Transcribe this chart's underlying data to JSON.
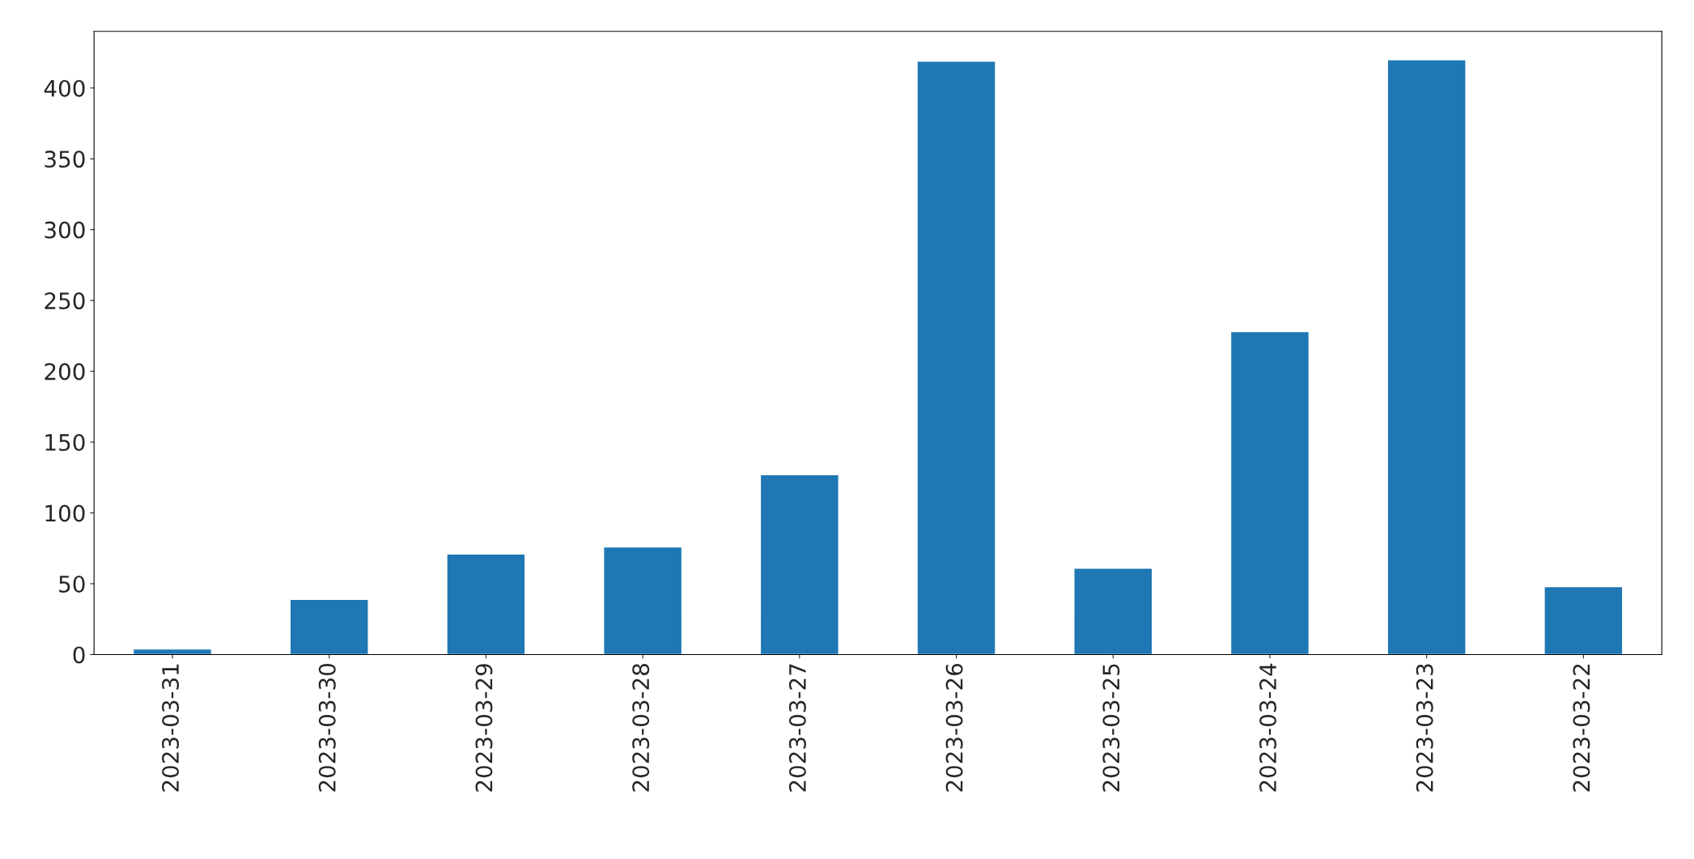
{
  "chart_data": {
    "type": "bar",
    "categories": [
      "2023-03-31",
      "2023-03-30",
      "2023-03-29",
      "2023-03-28",
      "2023-03-27",
      "2023-03-26",
      "2023-03-25",
      "2023-03-24",
      "2023-03-23",
      "2023-03-22"
    ],
    "values": [
      4,
      39,
      71,
      76,
      127,
      419,
      61,
      228,
      420,
      48
    ],
    "color": "#1f77b4",
    "ylim": [
      0,
      440
    ],
    "yticks": [
      0,
      50,
      100,
      150,
      200,
      250,
      300,
      350,
      400
    ],
    "grid": false,
    "legend": false
  }
}
